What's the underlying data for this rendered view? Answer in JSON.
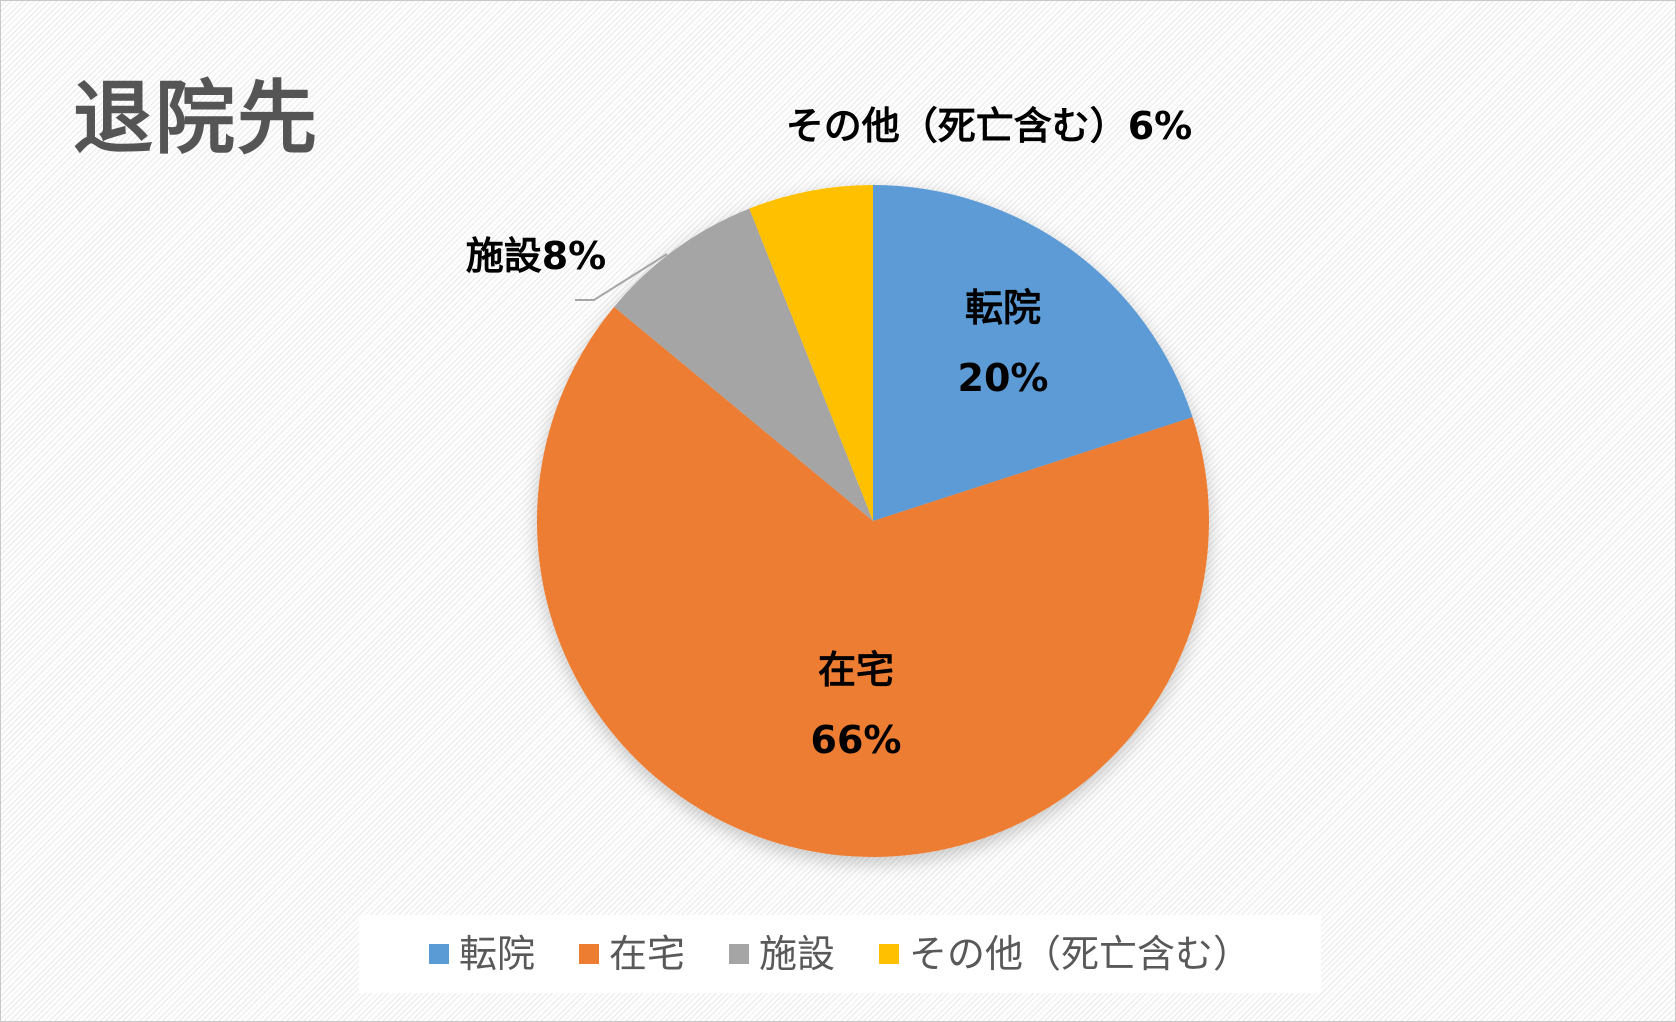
{
  "chart_data": {
    "type": "pie",
    "title": "退院先",
    "categories": [
      "転院",
      "在宅",
      "施設",
      "その他（死亡含む）"
    ],
    "values": [
      20,
      66,
      8,
      6
    ],
    "unit": "%",
    "colors": [
      "#5B9BD5",
      "#ED7D31",
      "#A5A5A5",
      "#FFC000"
    ],
    "data_labels": [
      {
        "name": "転院",
        "value": "20%"
      },
      {
        "name": "在宅",
        "value": "66%"
      },
      {
        "name": "施設",
        "value": "施設8%"
      },
      {
        "name": "その他（死亡含む）",
        "value": "その他（死亡含む）6%"
      }
    ],
    "legend": {
      "position": "bottom",
      "entries": [
        "転院",
        "在宅",
        "施設",
        "その他（死亡含む）"
      ]
    }
  }
}
